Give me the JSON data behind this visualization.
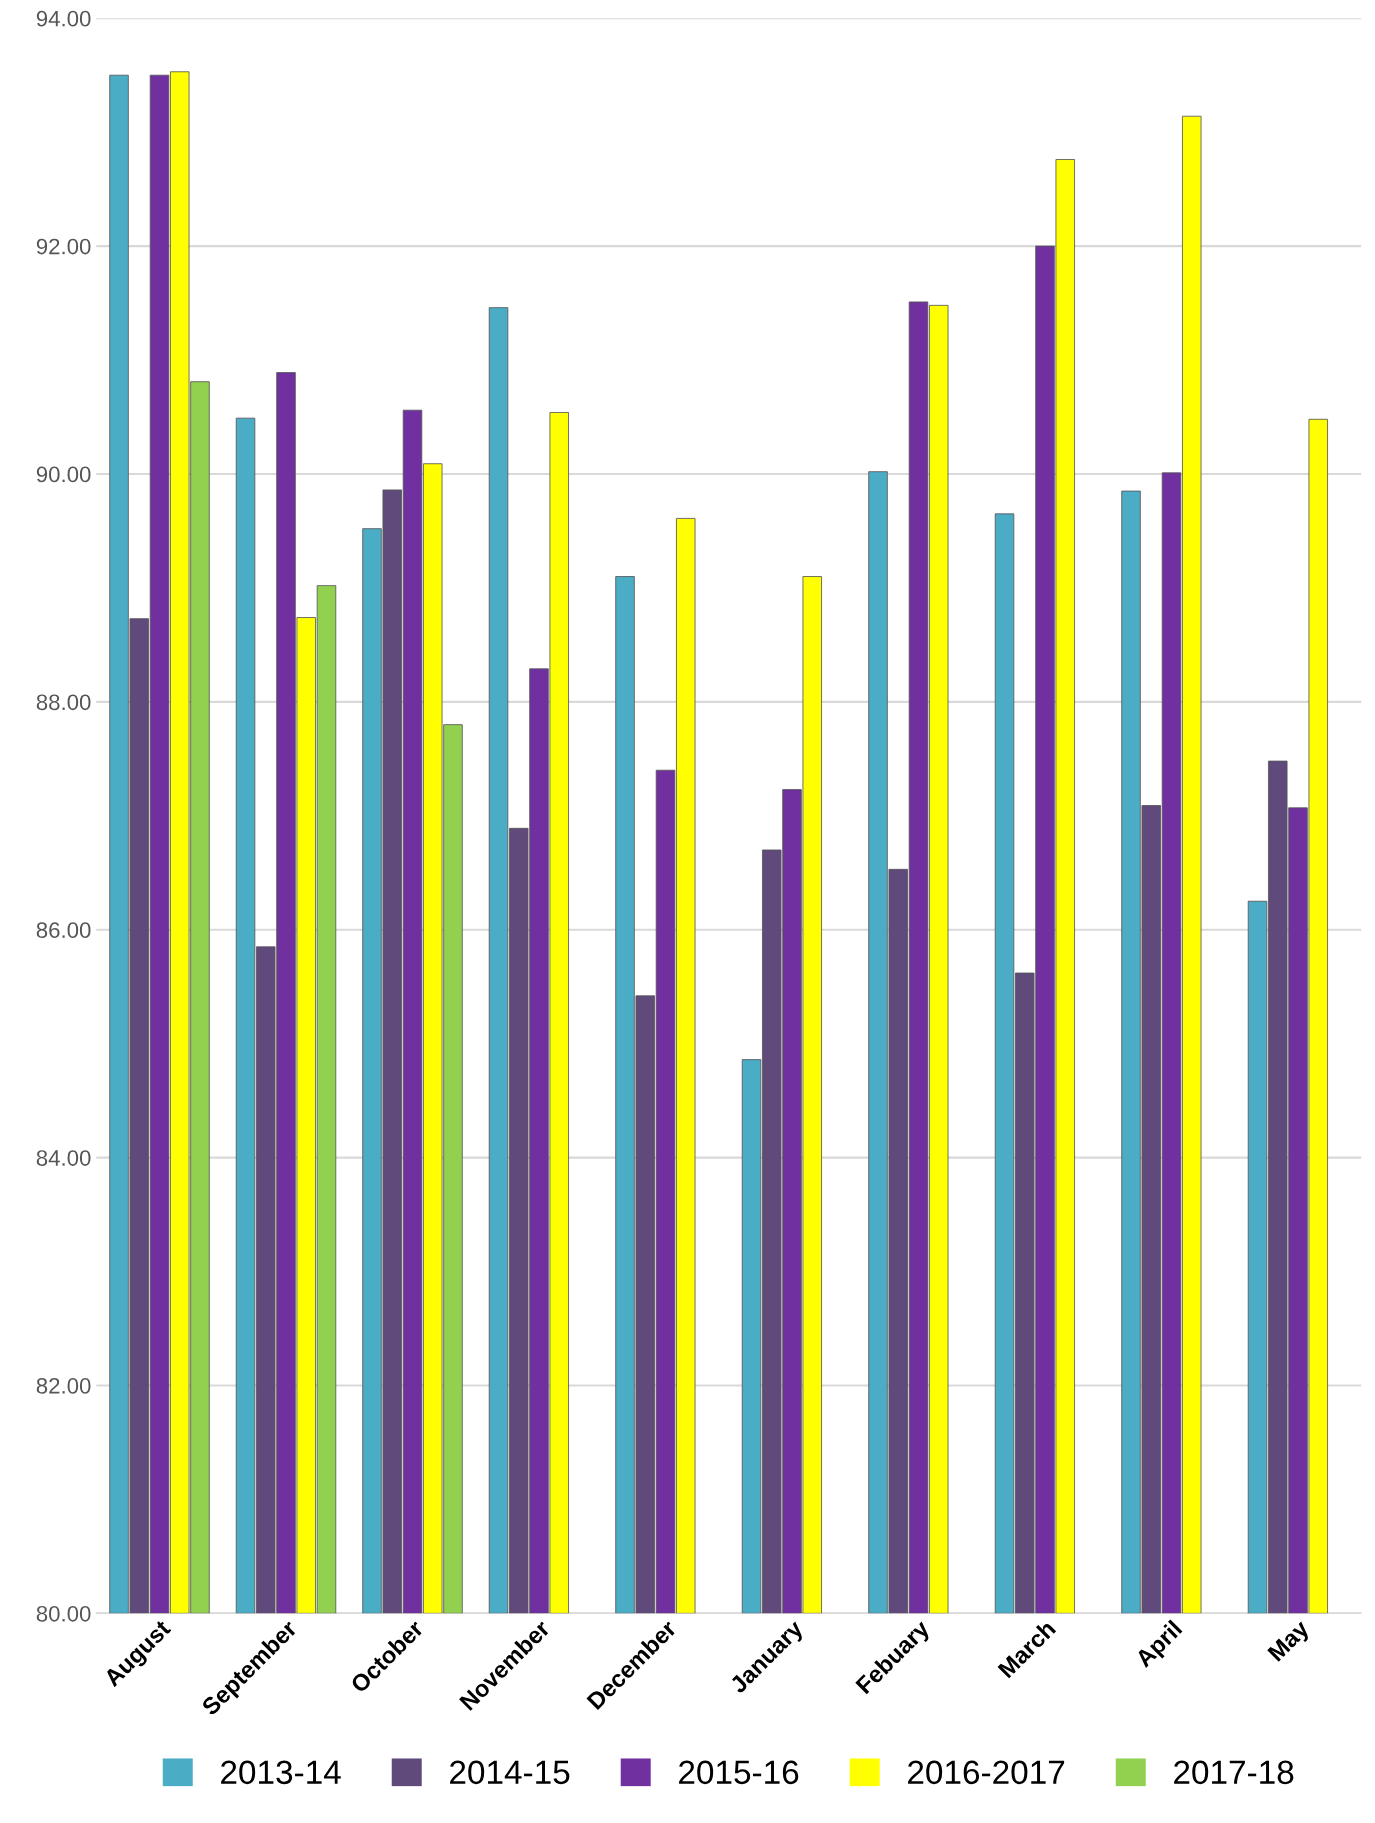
{
  "chart_data": {
    "type": "bar",
    "categories": [
      "August",
      "September",
      "October",
      "November",
      "December",
      "January",
      "Febuary",
      "March",
      "April",
      "May"
    ],
    "series": [
      {
        "name": "2013-14",
        "color": "#4bacc6",
        "values": [
          93.5,
          90.49,
          89.52,
          91.46,
          89.1,
          84.86,
          90.02,
          89.65,
          89.85,
          86.25
        ]
      },
      {
        "name": "2014-15",
        "color": "#604a7b",
        "values": [
          88.73,
          85.85,
          89.86,
          86.89,
          85.42,
          86.7,
          86.53,
          85.62,
          87.09,
          87.48
        ]
      },
      {
        "name": "2015-16",
        "color": "#7030a0",
        "values": [
          93.5,
          90.89,
          90.56,
          88.29,
          87.4,
          87.23,
          91.51,
          92.0,
          90.01,
          87.07
        ]
      },
      {
        "name": "2016-2017",
        "color": "#ffff00",
        "values": [
          93.53,
          88.74,
          90.09,
          90.54,
          89.61,
          89.1,
          91.48,
          92.76,
          93.14,
          90.48
        ]
      },
      {
        "name": "2017-18",
        "color": "#92d050",
        "values": [
          90.81,
          89.02,
          87.8,
          null,
          null,
          null,
          null,
          null,
          null,
          null
        ]
      }
    ],
    "ylim": [
      80,
      94
    ],
    "yticks": [
      {
        "value": 80,
        "label": "80.00"
      },
      {
        "value": 82,
        "label": "82.00"
      },
      {
        "value": 84,
        "label": "84.00"
      },
      {
        "value": 86,
        "label": "86.00"
      },
      {
        "value": 88,
        "label": "88.00"
      },
      {
        "value": 90,
        "label": "90.00"
      },
      {
        "value": 92,
        "label": "92.00"
      },
      {
        "value": 94,
        "label": "94.00"
      }
    ],
    "grid": "y",
    "legend": "bottom"
  }
}
